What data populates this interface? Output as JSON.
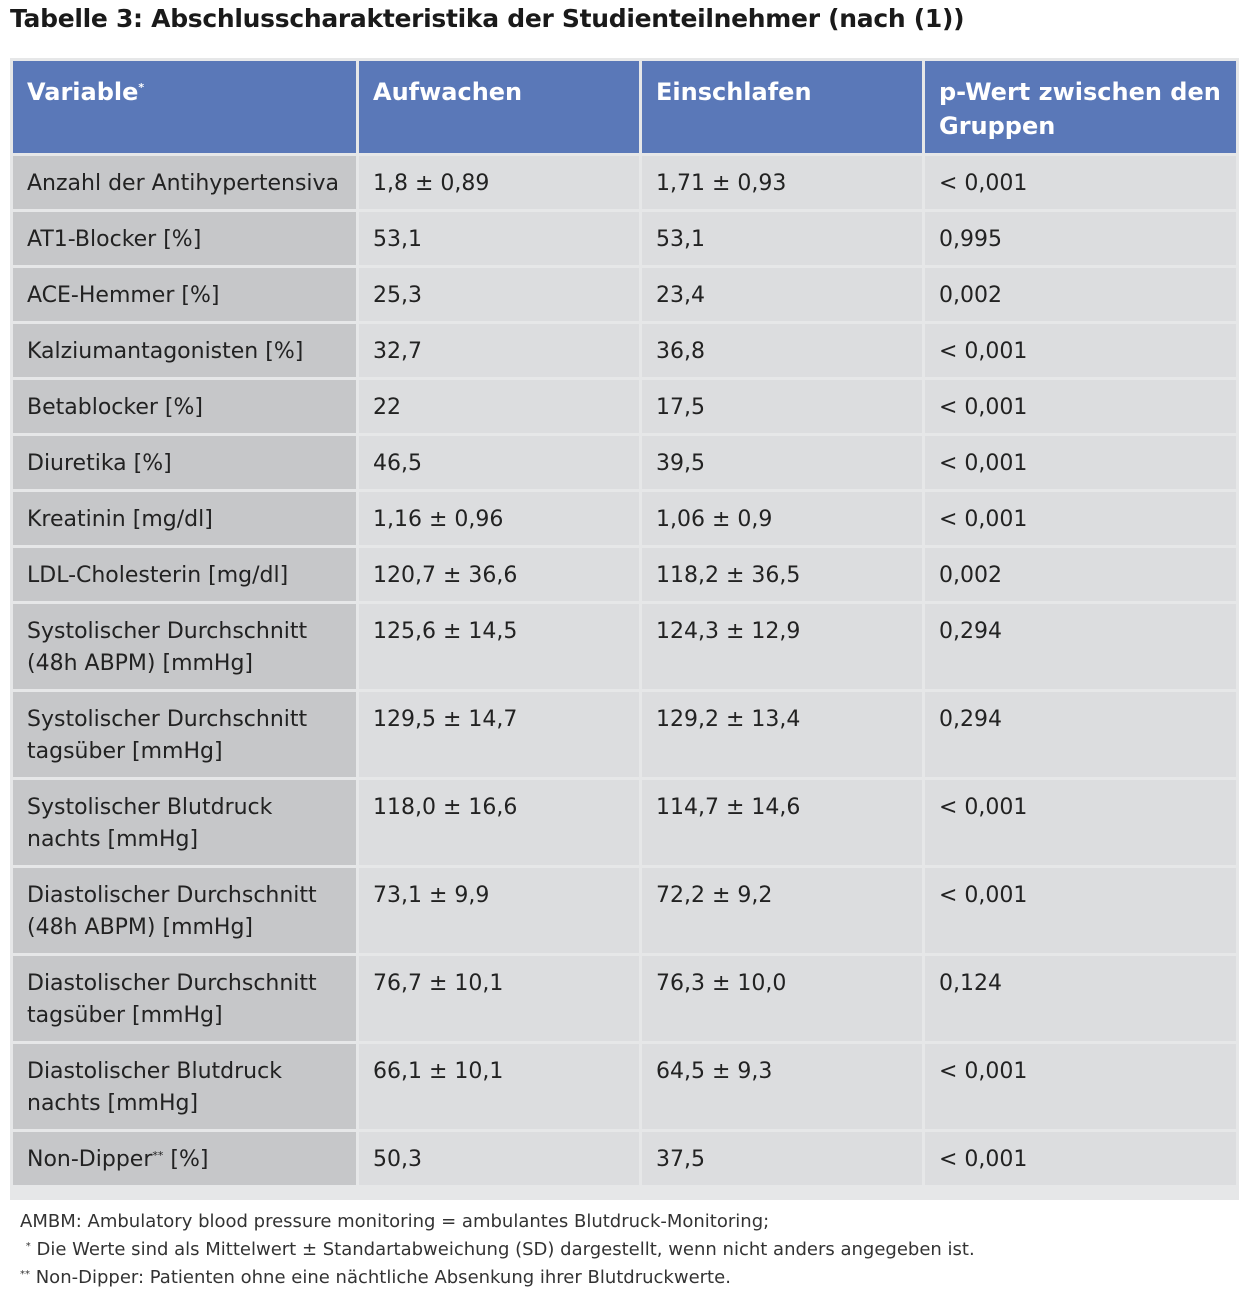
{
  "title": "Tabelle 3: Abschlusscharakteristika der Studienteilnehmer (nach (1))",
  "colors": {
    "header_bg": "#5a78b8",
    "variable_col_bg": "#c6c7c9",
    "value_col_bg": "#dcdddf",
    "table_border": "#e6e7e8"
  },
  "table": {
    "headers": {
      "variable": "Variable",
      "variable_mark": "*",
      "aufwachen": "Aufwachen",
      "einschlafen": "Einschlafen",
      "p_wert": "p-Wert zwischen den Gruppen"
    },
    "rows": [
      {
        "variable": "Anzahl der Antihypertensiva",
        "aufwachen": "1,8 ± 0,89",
        "einschlafen": "1,71 ± 0,93",
        "p": "< 0,001"
      },
      {
        "variable": "AT1-Blocker [%]",
        "aufwachen": "53,1",
        "einschlafen": "53,1",
        "p": "0,995"
      },
      {
        "variable": "ACE-Hemmer [%]",
        "aufwachen": "25,3",
        "einschlafen": "23,4",
        "p": "0,002"
      },
      {
        "variable": "Kalziumantagonisten [%]",
        "aufwachen": "32,7",
        "einschlafen": "36,8",
        "p": "< 0,001"
      },
      {
        "variable": "Betablocker [%]",
        "aufwachen": "22",
        "einschlafen": "17,5",
        "p": "< 0,001"
      },
      {
        "variable": "Diuretika [%]",
        "aufwachen": "46,5",
        "einschlafen": "39,5",
        "p": "< 0,001"
      },
      {
        "variable": "Kreatinin [mg/dl]",
        "aufwachen": "1,16 ± 0,96",
        "einschlafen": "1,06 ± 0,9",
        "p": "< 0,001"
      },
      {
        "variable": "LDL-Cholesterin [mg/dl]",
        "aufwachen": "120,7 ± 36,6",
        "einschlafen": "118,2 ± 36,5",
        "p": "0,002"
      },
      {
        "variable_line1": "Systolischer Durchschnitt",
        "variable_line2": "(48h ABPM) [mmHg]",
        "aufwachen": "125,6 ± 14,5",
        "einschlafen": "124,3 ± 12,9",
        "p": "0,294"
      },
      {
        "variable_line1": "Systolischer Durchschnitt",
        "variable_line2": "tagsüber [mmHg]",
        "aufwachen": "129,5 ± 14,7",
        "einschlafen": "129,2 ± 13,4",
        "p": "0,294"
      },
      {
        "variable_line1": "Systolischer Blutdruck",
        "variable_line2": "nachts [mmHg]",
        "aufwachen": "118,0 ± 16,6",
        "einschlafen": "114,7 ± 14,6",
        "p": "< 0,001"
      },
      {
        "variable_line1": "Diastolischer Durchschnitt",
        "variable_line2": "(48h ABPM) [mmHg]",
        "aufwachen": "73,1 ± 9,9",
        "einschlafen": "72,2 ± 9,2",
        "p": "< 0,001"
      },
      {
        "variable_line1": "Diastolischer Durchschnitt",
        "variable_line2": "tagsüber [mmHg]",
        "aufwachen": "76,7 ± 10,1",
        "einschlafen": "76,3 ± 10,0",
        "p": "0,124"
      },
      {
        "variable_line1": "Diastolischer Blutdruck",
        "variable_line2": "nachts [mmHg]",
        "aufwachen": "66,1 ± 10,1",
        "einschlafen": "64,5 ± 9,3",
        "p": "< 0,001"
      },
      {
        "variable": "Non-Dipper",
        "variable_mark": "**",
        "variable_suffix": " [%]",
        "aufwachen": "50,3",
        "einschlafen": "37,5",
        "p": "< 0,001"
      }
    ]
  },
  "footnotes": {
    "line1": "AMBM: Ambulatory blood pressure monitoring = ambulantes Blutdruck-Monitoring;",
    "line2_mark": "*",
    "line2": " Die Werte sind als Mittelwert ± Standartabweichung (SD) dargestellt, wenn nicht anders angegeben ist.",
    "line3_mark": "**",
    "line3": " Non-Dipper: Patienten ohne eine nächtliche Absenkung ihrer Blutdruckwerte."
  }
}
